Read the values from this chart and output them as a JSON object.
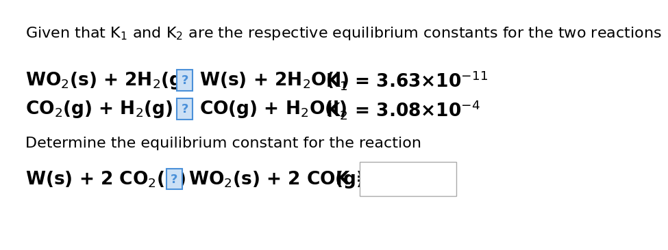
{
  "bg_color": "#ffffff",
  "title_text": "Given that K$_1$ and K$_2$ are the respective equilibrium constants for the two reactions",
  "determine_text": "Determine the equilibrium constant for the reaction",
  "question_box_color": "#4a90d9",
  "question_box_bg": "#cce0f5",
  "font_size_title": 16,
  "font_size_reaction": 19,
  "font_size_determine": 16,
  "r1_left": "WO$_2$(s) + 2H$_2$(g)",
  "r1_right": "W(s) + 2H$_2$O(l)",
  "r1_K": "K$_1$ = 3.63",
  "r1_exp": "$^{-11}$",
  "r2_left": "CO$_2$(g) + H$_2$(g)",
  "r2_right": "CO(g) + H$_2$O(l)",
  "r2_K": "K$_2$ = 3.08",
  "r2_exp": "$^{-4}$",
  "fin_left": "W(s) + 2 CO$_2$(g)",
  "fin_right": "WO$_2$(s) + 2 CO(g)",
  "cross": "×",
  "ten": "10"
}
